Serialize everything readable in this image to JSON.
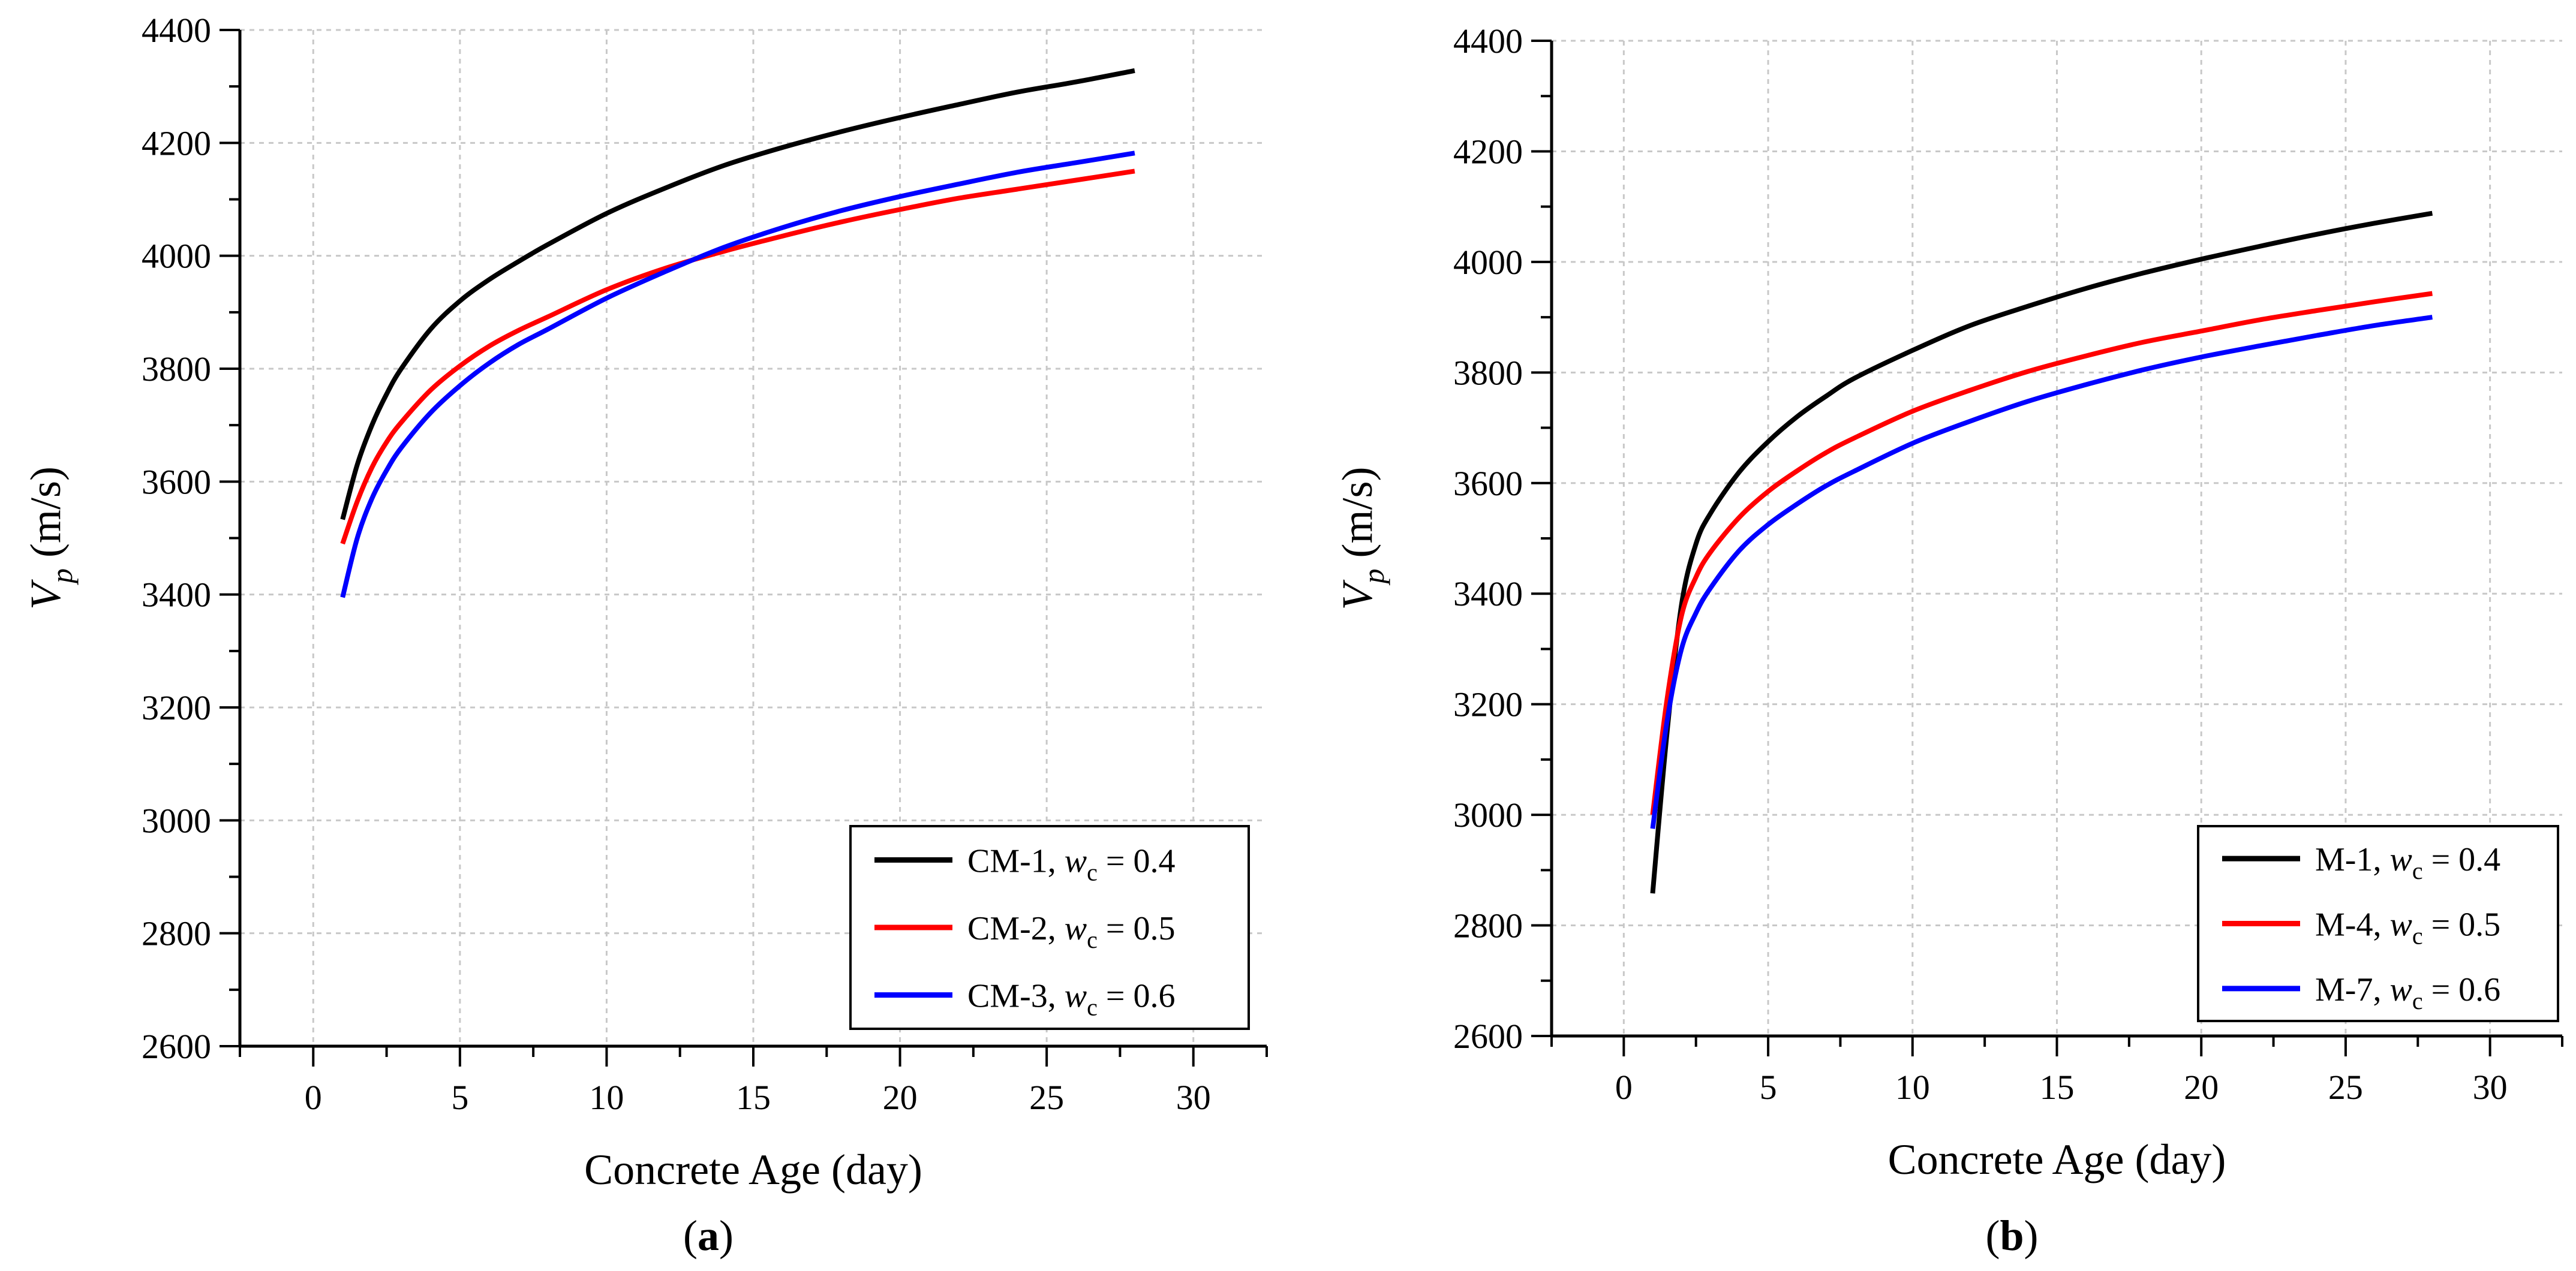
{
  "chart_data": [
    {
      "type": "line",
      "panel_label": "a",
      "xlabel": "Concrete Age (day)",
      "ylabel_main": "V",
      "ylabel_sub": "p",
      "ylabel_unit": " (m/s)",
      "xlim": [
        -2.5,
        32.5
      ],
      "ylim": [
        2600,
        4400
      ],
      "x_ticks": [
        0,
        5,
        10,
        15,
        20,
        25,
        30
      ],
      "y_ticks": [
        2600,
        2800,
        3000,
        3200,
        3400,
        3600,
        3800,
        4000,
        4200,
        4400
      ],
      "grid": true,
      "legend_position": "bottom-right",
      "series": [
        {
          "name_pre": "CM-1, ",
          "name_var": "w",
          "name_sub": "c",
          "name_post": " = 0.4",
          "color": "#000000",
          "x": [
            1,
            1.5,
            2,
            2.5,
            3,
            4,
            5,
            6,
            7,
            8,
            10,
            12,
            14,
            16,
            18,
            20,
            22,
            24,
            26,
            28
          ],
          "y": [
            3533,
            3630,
            3700,
            3755,
            3800,
            3870,
            3920,
            3958,
            3990,
            4020,
            4075,
            4120,
            4160,
            4192,
            4220,
            4245,
            4268,
            4290,
            4308,
            4328
          ]
        },
        {
          "name_pre": "CM-2, ",
          "name_var": "w",
          "name_sub": "c",
          "name_post": " = 0.5",
          "color": "#ff0000",
          "x": [
            1,
            1.5,
            2,
            2.5,
            3,
            4,
            5,
            6,
            7,
            8,
            10,
            12,
            14,
            16,
            18,
            20,
            22,
            24,
            26,
            28
          ],
          "y": [
            3490,
            3565,
            3625,
            3670,
            3705,
            3762,
            3805,
            3840,
            3868,
            3892,
            3940,
            3978,
            4008,
            4035,
            4060,
            4082,
            4102,
            4118,
            4134,
            4150
          ]
        },
        {
          "name_pre": "CM-3, ",
          "name_var": "w",
          "name_sub": "c",
          "name_post": " = 0.6",
          "color": "#0000ff",
          "x": [
            1,
            1.5,
            2,
            2.5,
            3,
            4,
            5,
            6,
            7,
            8,
            10,
            12,
            14,
            16,
            18,
            20,
            22,
            24,
            26,
            28
          ],
          "y": [
            3395,
            3500,
            3570,
            3620,
            3660,
            3722,
            3770,
            3810,
            3843,
            3870,
            3925,
            3972,
            4015,
            4050,
            4080,
            4105,
            4127,
            4148,
            4165,
            4182
          ]
        }
      ]
    },
    {
      "type": "line",
      "panel_label": "b",
      "xlabel": "Concrete Age (day)",
      "ylabel_main": "V",
      "ylabel_sub": "p",
      "ylabel_unit": " (m/s)",
      "xlim": [
        -2.5,
        32.5
      ],
      "ylim": [
        2600,
        4400
      ],
      "x_ticks": [
        0,
        5,
        10,
        15,
        20,
        25,
        30
      ],
      "y_ticks": [
        2600,
        2800,
        3000,
        3200,
        3400,
        3600,
        3800,
        4000,
        4200,
        4400
      ],
      "grid": true,
      "legend_position": "bottom-right",
      "series": [
        {
          "name_pre": "M-1, ",
          "name_var": "w",
          "name_sub": "c",
          "name_post": " = 0.4",
          "color": "#000000",
          "x": [
            1,
            1.5,
            2,
            2.5,
            3,
            4,
            5,
            6,
            7,
            8,
            10,
            12,
            14,
            16,
            18,
            20,
            22,
            24,
            26,
            28
          ],
          "y": [
            2858,
            3150,
            3380,
            3490,
            3545,
            3620,
            3675,
            3720,
            3757,
            3790,
            3840,
            3885,
            3920,
            3952,
            3980,
            4005,
            4028,
            4050,
            4070,
            4088
          ]
        },
        {
          "name_pre": "M-4, ",
          "name_var": "w",
          "name_sub": "c",
          "name_post": " = 0.5",
          "color": "#ff0000",
          "x": [
            1,
            1.5,
            2,
            2.5,
            3,
            4,
            5,
            6,
            7,
            8,
            10,
            12,
            14,
            16,
            18,
            20,
            22,
            24,
            26,
            28
          ],
          "y": [
            3000,
            3210,
            3360,
            3430,
            3475,
            3538,
            3585,
            3622,
            3655,
            3682,
            3730,
            3768,
            3802,
            3830,
            3855,
            3875,
            3895,
            3912,
            3928,
            3943
          ]
        },
        {
          "name_pre": "M-7, ",
          "name_var": "w",
          "name_sub": "c",
          "name_post": " = 0.6",
          "color": "#0000ff",
          "x": [
            1,
            1.5,
            2,
            2.5,
            3,
            4,
            5,
            6,
            7,
            8,
            10,
            12,
            14,
            16,
            18,
            20,
            22,
            24,
            26,
            28
          ],
          "y": [
            2975,
            3170,
            3300,
            3365,
            3410,
            3478,
            3525,
            3562,
            3595,
            3622,
            3672,
            3712,
            3748,
            3778,
            3805,
            3828,
            3848,
            3867,
            3885,
            3900
          ]
        }
      ]
    }
  ]
}
